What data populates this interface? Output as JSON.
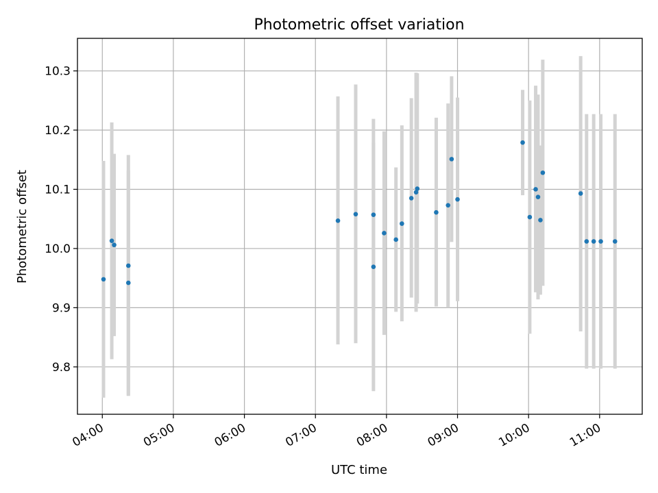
{
  "chart_data": {
    "type": "scatter",
    "title": "Photometric offset variation",
    "xlabel": "UTC time",
    "ylabel": "Photometric offset",
    "xlim": [
      "03:39",
      "11:36"
    ],
    "ylim": [
      9.72,
      10.355
    ],
    "xticks": [
      "04:00",
      "05:00",
      "06:00",
      "07:00",
      "08:00",
      "09:00",
      "10:00",
      "11:00"
    ],
    "yticks": [
      9.8,
      9.9,
      10.0,
      10.1,
      10.2,
      10.3
    ],
    "grid": true,
    "points_color": "#1f77b4",
    "errorbar_color": "#d3d3d3",
    "points": [
      {
        "t": "04:01",
        "y": 9.948,
        "lo": 9.748,
        "hi": 10.148
      },
      {
        "t": "04:08",
        "y": 10.013,
        "lo": 9.813,
        "hi": 10.213
      },
      {
        "t": "04:10",
        "y": 10.006,
        "lo": 9.852,
        "hi": 10.16
      },
      {
        "t": "04:22",
        "y": 9.971,
        "lo": 9.751,
        "hi": 10.158
      },
      {
        "t": "04:22",
        "y": 9.942,
        "lo": 9.752,
        "hi": 10.132
      },
      {
        "t": "07:19",
        "y": 10.047,
        "lo": 9.838,
        "hi": 10.257
      },
      {
        "t": "07:34",
        "y": 10.058,
        "lo": 9.84,
        "hi": 10.277
      },
      {
        "t": "07:49",
        "y": 10.057,
        "lo": 9.895,
        "hi": 10.219
      },
      {
        "t": "07:49",
        "y": 9.969,
        "lo": 9.759,
        "hi": 10.179
      },
      {
        "t": "07:58",
        "y": 10.026,
        "lo": 9.854,
        "hi": 10.198
      },
      {
        "t": "08:08",
        "y": 10.015,
        "lo": 9.893,
        "hi": 10.137
      },
      {
        "t": "08:13",
        "y": 10.042,
        "lo": 9.877,
        "hi": 10.208
      },
      {
        "t": "08:21",
        "y": 10.085,
        "lo": 9.917,
        "hi": 10.254
      },
      {
        "t": "08:25",
        "y": 10.095,
        "lo": 9.893,
        "hi": 10.297
      },
      {
        "t": "08:26",
        "y": 10.101,
        "lo": 9.907,
        "hi": 10.296
      },
      {
        "t": "08:42",
        "y": 10.061,
        "lo": 9.902,
        "hi": 10.221
      },
      {
        "t": "08:52",
        "y": 10.073,
        "lo": 9.9,
        "hi": 10.245
      },
      {
        "t": "08:55",
        "y": 10.151,
        "lo": 10.011,
        "hi": 10.291
      },
      {
        "t": "09:00",
        "y": 10.083,
        "lo": 9.911,
        "hi": 10.255
      },
      {
        "t": "09:55",
        "y": 10.179,
        "lo": 10.09,
        "hi": 10.268
      },
      {
        "t": "10:01",
        "y": 10.053,
        "lo": 9.856,
        "hi": 10.25
      },
      {
        "t": "10:06",
        "y": 10.1,
        "lo": 9.926,
        "hi": 10.275
      },
      {
        "t": "10:08",
        "y": 10.087,
        "lo": 9.914,
        "hi": 10.26
      },
      {
        "t": "10:10",
        "y": 10.048,
        "lo": 9.922,
        "hi": 10.174
      },
      {
        "t": "10:12",
        "y": 10.128,
        "lo": 9.937,
        "hi": 10.319
      },
      {
        "t": "10:44",
        "y": 10.093,
        "lo": 9.86,
        "hi": 10.325
      },
      {
        "t": "10:49",
        "y": 10.012,
        "lo": 9.797,
        "hi": 10.227
      },
      {
        "t": "10:55",
        "y": 10.012,
        "lo": 9.797,
        "hi": 10.227
      },
      {
        "t": "11:01",
        "y": 10.012,
        "lo": 9.797,
        "hi": 10.227
      },
      {
        "t": "11:13",
        "y": 10.012,
        "lo": 9.797,
        "hi": 10.227
      }
    ]
  }
}
